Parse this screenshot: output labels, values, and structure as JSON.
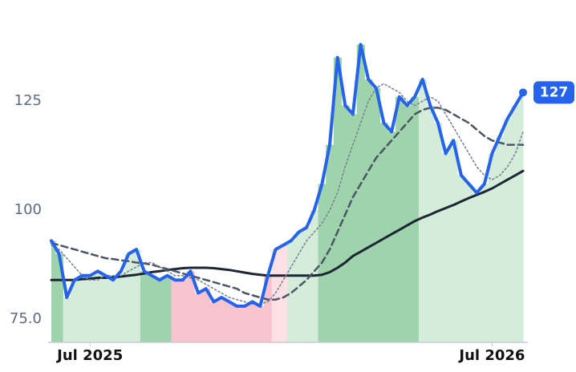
{
  "chart_data": {
    "type": "line",
    "categories": [
      null,
      null,
      null,
      null,
      null,
      "Jul 2025",
      null,
      null,
      null,
      null,
      null,
      null,
      null,
      null,
      null,
      null,
      null,
      null,
      null,
      null,
      null,
      null,
      null,
      null,
      null,
      null,
      null,
      null,
      null,
      null,
      null,
      null,
      null,
      null,
      null,
      null,
      null,
      null,
      null,
      null,
      null,
      null,
      null,
      null,
      null,
      null,
      null,
      null,
      null,
      null,
      null,
      null,
      null,
      null,
      null,
      null,
      null,
      "Jul 2026",
      null,
      null,
      null,
      null
    ],
    "series": [
      {
        "color": "#2563eb",
        "style": "solid",
        "width": 4,
        "values": [
          93,
          90,
          80,
          84,
          85,
          85,
          86,
          85,
          84,
          86,
          90,
          91,
          86,
          85,
          84,
          85,
          84,
          84,
          86,
          81,
          82,
          79,
          80,
          79,
          78,
          78,
          79,
          78,
          85,
          91,
          92,
          93,
          95,
          96,
          100,
          106,
          115,
          135,
          124,
          122,
          138,
          130,
          128,
          120,
          118,
          126,
          124,
          126,
          130,
          124,
          120,
          113,
          116,
          108,
          106,
          104,
          106,
          113,
          117,
          121,
          124,
          127
        ]
      },
      {
        "color": "#7b8494",
        "style": "dotted",
        "width": 1.6,
        "values": [
          92,
          91,
          89,
          87,
          85,
          84,
          84,
          85,
          85,
          85,
          86,
          87,
          88,
          88,
          87,
          86,
          85,
          85,
          84.5,
          84,
          83,
          82,
          81,
          80,
          79.5,
          79,
          78.5,
          78.5,
          79,
          81,
          84,
          87,
          90,
          93,
          95,
          97,
          100,
          104,
          110,
          115,
          120,
          125,
          128,
          129,
          128,
          127,
          125,
          124,
          125,
          126,
          125,
          122,
          119,
          116,
          113,
          110,
          108,
          107,
          108,
          110,
          113,
          118
        ]
      },
      {
        "color": "#4b5563",
        "style": "dashed",
        "width": 2.5,
        "values": [
          92.5,
          92,
          91.5,
          91,
          90.5,
          90,
          89.5,
          89,
          88.8,
          88.5,
          88.3,
          88,
          87.8,
          87.5,
          87,
          86.5,
          86,
          85.5,
          85,
          84.5,
          84,
          83.5,
          83,
          82.5,
          82,
          81,
          80.5,
          80,
          79.5,
          79.5,
          80,
          81,
          82.5,
          84,
          86,
          88,
          91,
          95,
          99,
          103,
          106,
          109,
          112,
          114,
          116,
          118,
          120,
          122,
          123,
          123.5,
          123.5,
          123,
          122,
          121,
          120,
          118.5,
          117,
          116,
          115.5,
          115,
          115,
          115
        ]
      },
      {
        "color": "#1e2535",
        "style": "solid",
        "width": 3,
        "values": [
          84,
          84,
          84,
          84,
          84.2,
          84.3,
          84.5,
          84.5,
          84.6,
          84.8,
          85,
          85.2,
          85.5,
          85.8,
          86,
          86.3,
          86.5,
          86.7,
          86.8,
          86.8,
          86.8,
          86.7,
          86.5,
          86.3,
          86,
          85.7,
          85.4,
          85.2,
          85,
          85,
          85,
          85,
          85,
          85,
          85,
          85.2,
          85.8,
          86.8,
          88,
          89.5,
          90.5,
          91.5,
          92.5,
          93.5,
          94.5,
          95.5,
          96.5,
          97.5,
          98.3,
          99,
          99.8,
          100.5,
          101.2,
          102,
          102.8,
          103.5,
          104.2,
          105,
          106,
          107,
          108,
          109
        ]
      }
    ],
    "band_colors": [
      "#9ed3ab",
      "#9ed3ab",
      "#d4eddb",
      "#d4eddb",
      "#d4eddb",
      "#d4eddb",
      "#d4eddb",
      "#d4eddb",
      "#d4eddb",
      "#d4eddb",
      "#d4eddb",
      "#d4eddb",
      "#9ed3ab",
      "#9ed3ab",
      "#9ed3ab",
      "#9ed3ab",
      "#f7c3cc",
      "#f7c3cc",
      "#f7c3cc",
      "#f7c3cc",
      "#f7c3cc",
      "#f7c3cc",
      "#f7c3cc",
      "#f7c3cc",
      "#f7c3cc",
      "#f7c3cc",
      "#f7c3cc",
      "#f7c3cc",
      "#f7c3cc",
      "#fde0e5",
      "#fde0e5",
      "#d4eddb",
      "#d4eddb",
      "#d4eddb",
      "#d4eddb",
      "#9ed3ab",
      "#9ed3ab",
      "#9ed3ab",
      "#9ed3ab",
      "#9ed3ab",
      "#9ed3ab",
      "#9ed3ab",
      "#9ed3ab",
      "#9ed3ab",
      "#9ed3ab",
      "#9ed3ab",
      "#9ed3ab",
      "#9ed3ab",
      "#d4eddb",
      "#d4eddb",
      "#d4eddb",
      "#d4eddb",
      "#d4eddb",
      "#d4eddb",
      "#d4eddb",
      "#d4eddb",
      "#d4eddb",
      "#d4eddb",
      "#d4eddb",
      "#d4eddb",
      "#d4eddb",
      "#d4eddb"
    ],
    "ylim": [
      69.7,
      148.2
    ],
    "yticks": [
      {
        "value": 75,
        "label": "75.0"
      },
      100,
      125
    ],
    "grid": false
  }
}
